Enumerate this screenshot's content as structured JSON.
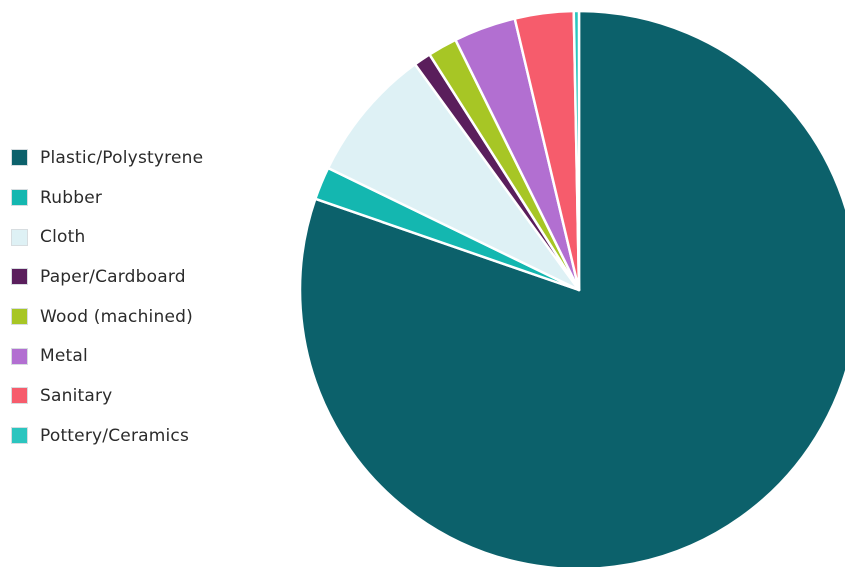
{
  "chart_data": {
    "type": "pie",
    "title": "",
    "legend_position": "left",
    "categories": [
      "Plastic/Polystyrene",
      "Rubber",
      "Cloth",
      "Paper/Cardboard",
      "Wood (machined)",
      "Metal",
      "Sanitary",
      "Pottery/Ceramics"
    ],
    "values": [
      80.3,
      1.9,
      7.8,
      1.0,
      1.7,
      3.6,
      3.4,
      0.3
    ],
    "colors": [
      "#0c616b",
      "#14b7b0",
      "#def1f5",
      "#5a1e5c",
      "#a7c625",
      "#b26fd1",
      "#f65c6c",
      "#2bc5bf"
    ],
    "start_angle_deg": 0,
    "direction": "clockwise"
  }
}
